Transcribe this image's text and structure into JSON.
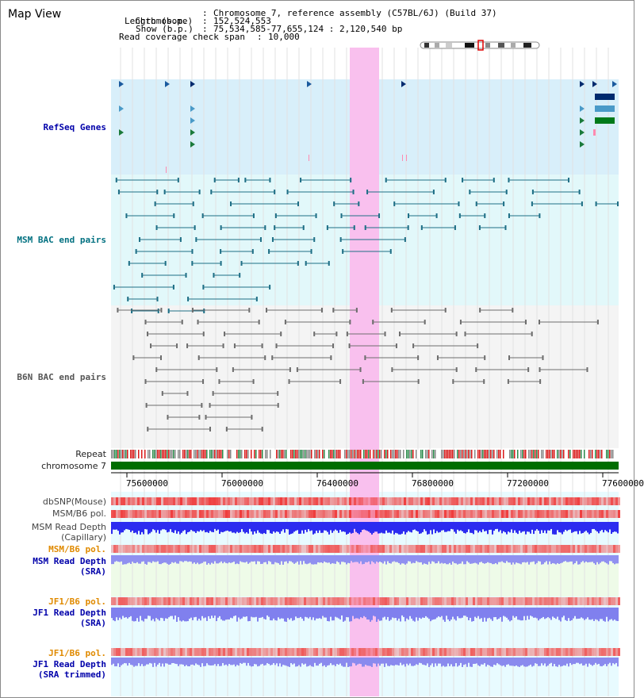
{
  "title": "Map View",
  "info": {
    "chromosome_key": "Chromosome",
    "chromosome_val": "Chromosome 7, reference assembly (C57BL/6J) (Build 37)",
    "length_key": "Length (b.p.)",
    "length_val": "152,524,553",
    "show_key": "Show (b.p.)",
    "show_val": "75,534,585-77,655,124 : 2,120,540 bp",
    "coverage_key": "Read coverage check span",
    "coverage_val": "10,000",
    "sep": ":"
  },
  "tracks": {
    "refseq": "RefSeq Genes",
    "msm_bac": "MSM BAC end pairs",
    "b6n_bac": "B6N BAC end pairs",
    "repeat": "Repeat",
    "chromosome": "chromosome 7",
    "dbsnp": "dbSNP(Mouse)",
    "msm_b6_pol_1": "MSM/B6 pol.",
    "msm_depth_cap_1": "MSM Read Depth",
    "msm_depth_cap_2": "(Capillary)",
    "msm_b6_pol_2": "MSM/B6 pol.",
    "msm_depth_sra_1": "MSM Read Depth",
    "msm_depth_sra_2": "(SRA)",
    "jf1_pol_1": "JF1/B6 pol.",
    "jf1_depth_sra_1": "JF1 Read Depth",
    "jf1_depth_sra_2": "(SRA)",
    "jf1_pol_2": "JF1/B6 pol.",
    "jf1_depth_trim_1": "JF1 Read Depth",
    "jf1_depth_trim_2": "(SRA trimmed)"
  },
  "axis": {
    "ticks": [
      "75600000",
      "76000000",
      "76400000",
      "76800000",
      "77200000",
      "77600000"
    ]
  },
  "colors": {
    "refseq_label": "#0000aa",
    "msm_bac_label": "#007080",
    "b6n_label": "#555555",
    "pol_label": "#e08a00",
    "depth_label": "#0000aa",
    "highlight": "#f9c0ee",
    "refseq_bg": "#d8effa",
    "bac_bg": "#e2f8fa",
    "chromosome_bar": "#006e00"
  }
}
